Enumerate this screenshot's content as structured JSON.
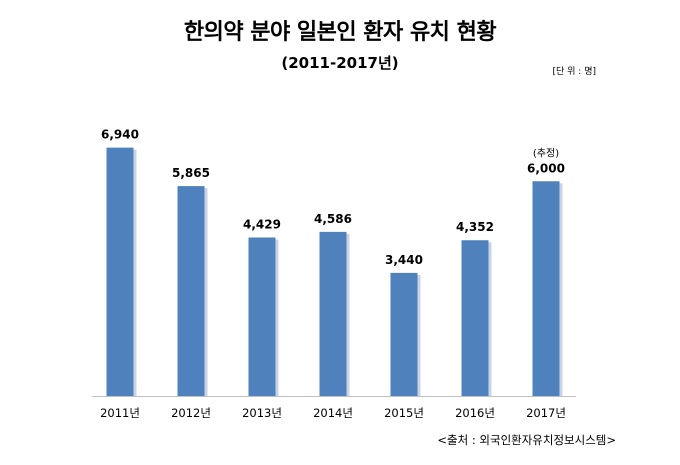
{
  "header": {
    "title": "한의약 분야 일본인 환자 유치 현황",
    "subtitle": "(2011-2017년)",
    "unit": "[단 위 : 명]"
  },
  "footer": {
    "source": "<출처 : 외국인환자유치정보시스템>"
  },
  "chart_data": {
    "type": "bar",
    "title": "한의약 분야 일본인 환자 유치 현황",
    "subtitle": "(2011-2017년)",
    "categories": [
      "2011년",
      "2012년",
      "2013년",
      "2014년",
      "2015년",
      "2016년",
      "2017년"
    ],
    "values": [
      6940,
      5865,
      4429,
      4586,
      3440,
      4352,
      6000
    ],
    "value_labels": [
      "6,940",
      "5,865",
      "4,429",
      "4,586",
      "3,440",
      "4,352",
      "6,000"
    ],
    "annotations": [
      {
        "category": "2017년",
        "text": "(추정)"
      }
    ],
    "unit": "명",
    "ylim": [
      0,
      7600
    ],
    "grid": false,
    "legend": "none",
    "bar_color": "#4f81bd",
    "bar_shadow_color": "#c9d3e6"
  }
}
